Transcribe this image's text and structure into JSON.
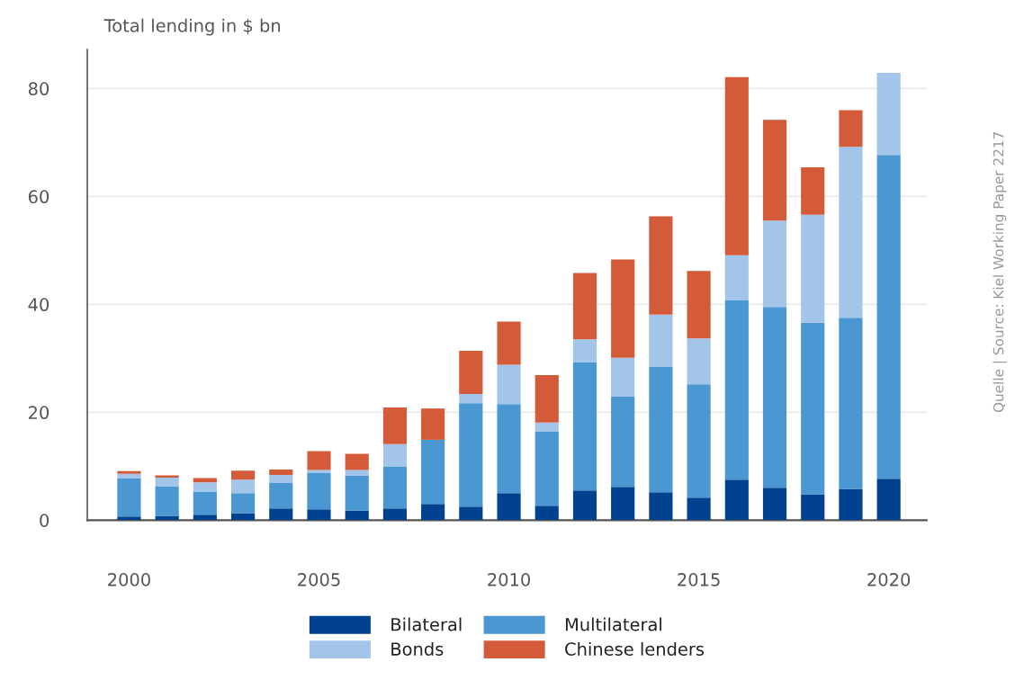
{
  "chart_data": {
    "type": "bar",
    "stacked": true,
    "ylabel": "Total lending in $ bn",
    "x": [
      2000,
      2001,
      2002,
      2003,
      2004,
      2005,
      2006,
      2007,
      2008,
      2009,
      2010,
      2011,
      2012,
      2013,
      2014,
      2015,
      2016,
      2017,
      2018,
      2019,
      2020
    ],
    "series": [
      {
        "name": "Bilateral",
        "color": "#00428f",
        "values": [
          0.7,
          0.8,
          1.0,
          1.3,
          2.2,
          2.0,
          1.8,
          2.2,
          3.0,
          2.5,
          5.0,
          2.7,
          5.5,
          6.2,
          5.2,
          4.2,
          7.5,
          6.0,
          4.8,
          5.8,
          7.7
        ]
      },
      {
        "name": "Multilateral",
        "color": "#4a97d2",
        "values": [
          7.1,
          5.5,
          4.3,
          3.7,
          4.7,
          6.8,
          6.5,
          7.7,
          11.9,
          19.2,
          16.5,
          13.7,
          23.8,
          16.7,
          23.2,
          21.0,
          33.3,
          33.5,
          31.8,
          31.7,
          60.0
        ]
      },
      {
        "name": "Bonds",
        "color": "#a4c5ea",
        "values": [
          0.8,
          1.6,
          1.7,
          2.5,
          1.5,
          0.5,
          1.0,
          4.2,
          0,
          1.7,
          7.3,
          1.7,
          4.2,
          7.2,
          9.7,
          8.5,
          8.3,
          16.0,
          20.0,
          31.7,
          15.2
        ]
      },
      {
        "name": "Chinese lenders",
        "color": "#d45b3a",
        "values": [
          0.5,
          0.4,
          0.8,
          1.7,
          1.0,
          3.5,
          3.0,
          6.8,
          5.8,
          8.0,
          8.0,
          8.8,
          12.3,
          18.2,
          18.2,
          12.5,
          33.0,
          18.7,
          8.8,
          6.8,
          0
        ]
      }
    ],
    "xlim": [
      1998.9,
      2021
    ],
    "xticks": [
      2000,
      2005,
      2010,
      2015,
      2020
    ],
    "ylim": [
      0,
      87.2
    ],
    "yticks": [
      0,
      20,
      40,
      60,
      80
    ],
    "grid": "y",
    "legend": "bottom",
    "annotations": [
      "Quelle | Source: Kiel Working Paper 2217"
    ]
  }
}
